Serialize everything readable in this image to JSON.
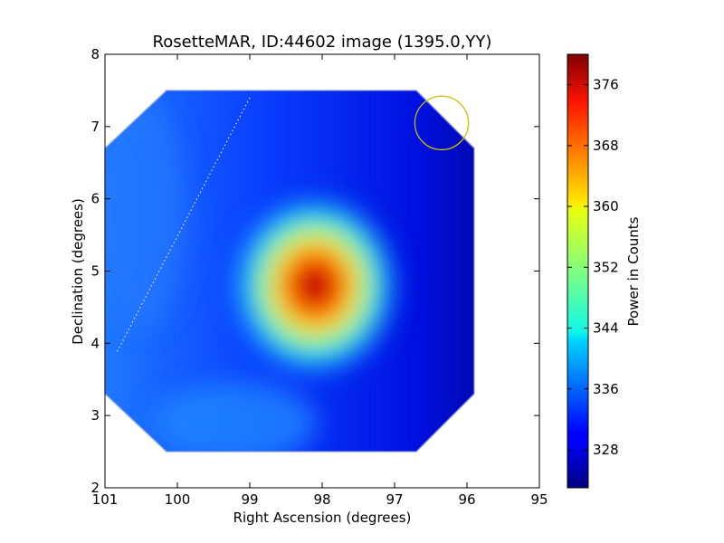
{
  "chart_data": {
    "type": "heatmap",
    "title": "RosetteMAR, ID:44602 image (1395.0,YY)",
    "xlabel": "Right Ascension (degrees)",
    "ylabel": "Declination (degrees)",
    "xlim": [
      101,
      95
    ],
    "ylim": [
      2,
      8
    ],
    "x_ticks": [
      "101",
      "100",
      "99",
      "98",
      "97",
      "96",
      "95"
    ],
    "y_ticks": [
      "2",
      "3",
      "4",
      "5",
      "6",
      "7",
      "8"
    ],
    "colorbar": {
      "label": "Power in Counts",
      "range": [
        323,
        380
      ],
      "ticks": [
        "328",
        "336",
        "344",
        "352",
        "360",
        "368",
        "376"
      ],
      "colormap": "jet"
    },
    "peak": {
      "ra": 98.1,
      "dec": 4.8,
      "value": 380
    },
    "background_value": 331,
    "footprint_octagon": [
      [
        100.15,
        7.5
      ],
      [
        96.7,
        7.5
      ],
      [
        95.9,
        6.7
      ],
      [
        95.9,
        3.3
      ],
      [
        96.7,
        2.5
      ],
      [
        100.15,
        2.5
      ],
      [
        101,
        3.3
      ],
      [
        101,
        6.7
      ]
    ],
    "beam_circle": {
      "ra": 96.35,
      "dec": 7.05,
      "radius_deg": 0.37,
      "color": "#c8c000"
    },
    "dotted_line": [
      [
        99.0,
        7.4
      ],
      [
        100.85,
        3.85
      ]
    ]
  }
}
